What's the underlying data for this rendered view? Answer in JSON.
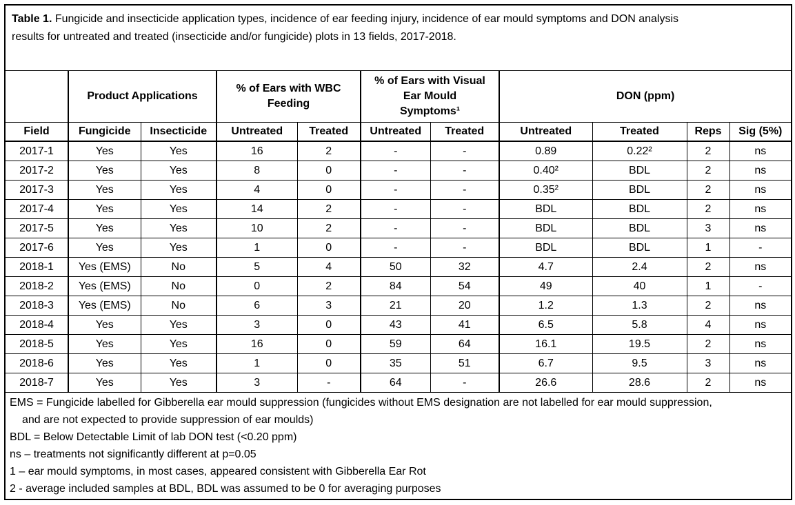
{
  "colors": {
    "background": "#ffffff",
    "text": "#000000",
    "border": "#000000"
  },
  "title": {
    "label": "Table 1.",
    "text": " Fungicide and insecticide application types, incidence of ear feeding injury, incidence of ear mould symptoms and DON analysis results for untreated and treated (insecticide and/or fungicide) plots in 13 fields, 2017-2018."
  },
  "table": {
    "group_headers": [
      {
        "label": ""
      },
      {
        "label": "Product Applications"
      },
      {
        "label": "% of Ears with WBC\nFeeding"
      },
      {
        "label": "% of Ears with Visual\nEar Mould\nSymptoms¹"
      },
      {
        "label": "DON (ppm)"
      }
    ],
    "column_headers": [
      "Field",
      "Fungicide",
      "Insecticide",
      "Untreated",
      "Treated",
      "Untreated",
      "Treated",
      "Untreated",
      "Treated",
      "Reps",
      "Sig (5%)"
    ],
    "rows": [
      [
        "2017-1",
        "Yes",
        "Yes",
        "16",
        "2",
        "-",
        "-",
        "0.89",
        "0.22²",
        "2",
        "ns"
      ],
      [
        "2017-2",
        "Yes",
        "Yes",
        "8",
        "0",
        "-",
        "-",
        "0.40²",
        "BDL",
        "2",
        "ns"
      ],
      [
        "2017-3",
        "Yes",
        "Yes",
        "4",
        "0",
        "-",
        "-",
        "0.35²",
        "BDL",
        "2",
        "ns"
      ],
      [
        "2017-4",
        "Yes",
        "Yes",
        "14",
        "2",
        "-",
        "-",
        "BDL",
        "BDL",
        "2",
        "ns"
      ],
      [
        "2017-5",
        "Yes",
        "Yes",
        "10",
        "2",
        "-",
        "-",
        "BDL",
        "BDL",
        "3",
        "ns"
      ],
      [
        "2017-6",
        "Yes",
        "Yes",
        "1",
        "0",
        "-",
        "-",
        "BDL",
        "BDL",
        "1",
        "-"
      ],
      [
        "2018-1",
        "Yes (EMS)",
        "No",
        "5",
        "4",
        "50",
        "32",
        "4.7",
        "2.4",
        "2",
        "ns"
      ],
      [
        "2018-2",
        "Yes (EMS)",
        "No",
        "0",
        "2",
        "84",
        "54",
        "49",
        "40",
        "1",
        "-"
      ],
      [
        "2018-3",
        "Yes (EMS)",
        "No",
        "6",
        "3",
        "21",
        "20",
        "1.2",
        "1.3",
        "2",
        "ns"
      ],
      [
        "2018-4",
        "Yes",
        "Yes",
        "3",
        "0",
        "43",
        "41",
        "6.5",
        "5.8",
        "4",
        "ns"
      ],
      [
        "2018-5",
        "Yes",
        "Yes",
        "16",
        "0",
        "59",
        "64",
        "16.1",
        "19.5",
        "2",
        "ns"
      ],
      [
        "2018-6",
        "Yes",
        "Yes",
        "1",
        "0",
        "35",
        "51",
        "6.7",
        "9.5",
        "3",
        "ns"
      ],
      [
        "2018-7",
        "Yes",
        "Yes",
        "3",
        "-",
        "64",
        "-",
        "26.6",
        "28.6",
        "2",
        "ns"
      ]
    ]
  },
  "footnotes": [
    "EMS = Fungicide labelled for Gibberella ear mould suppression (fungicides without EMS designation are not labelled for ear mould suppression, and are not expected to provide suppression of ear moulds)",
    "BDL = Below Detectable Limit of lab DON test (<0.20 ppm)",
    "ns – treatments not significantly different at p=0.05",
    "1 – ear mould symptoms, in most cases, appeared consistent with Gibberella Ear Rot",
    "2 - average included samples at BDL, BDL was assumed to be 0 for averaging purposes"
  ]
}
